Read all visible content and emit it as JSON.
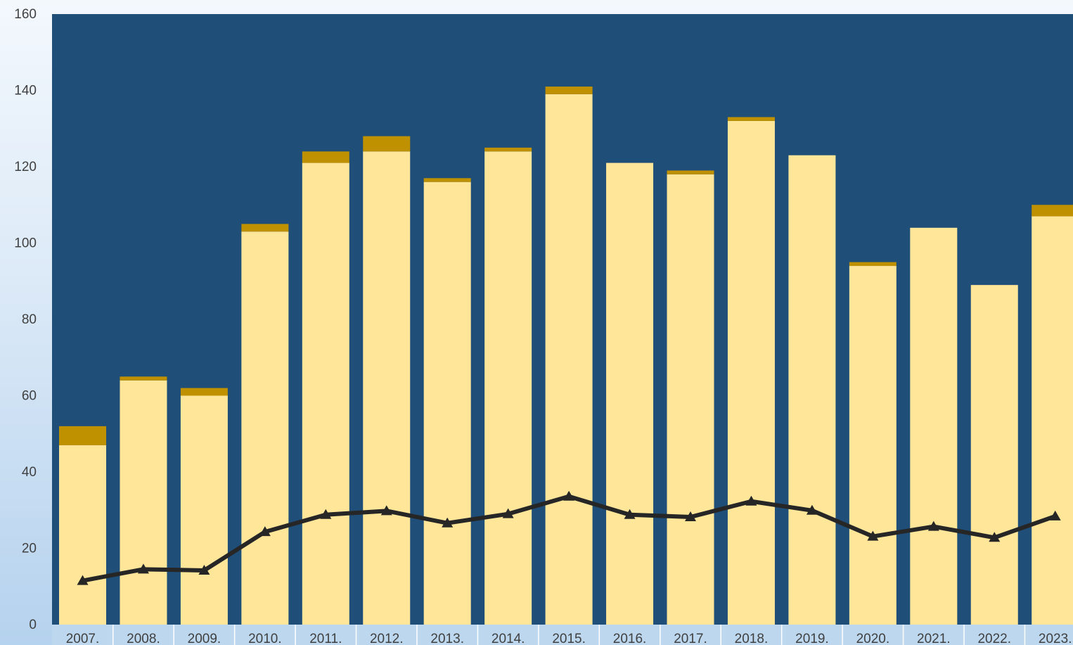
{
  "chart_data": {
    "type": "bar",
    "stacked": true,
    "title": "",
    "xlabel": "",
    "ylabel": "",
    "categories": [
      "2007.",
      "2008.",
      "2009.",
      "2010.",
      "2011.",
      "2012.",
      "2013.",
      "2014.",
      "2015.",
      "2016.",
      "2017.",
      "2018.",
      "2019.",
      "2020.",
      "2021.",
      "2022.",
      "2023."
    ],
    "ylim": [
      0,
      160
    ],
    "yticks": [
      0,
      20,
      40,
      60,
      80,
      100,
      120,
      140,
      160
    ],
    "grid": false,
    "legend": "none",
    "series": [
      {
        "type": "bar",
        "color": "#ffe699",
        "values": [
          47,
          64,
          60,
          103,
          121,
          124,
          116,
          124,
          139,
          121,
          118,
          132,
          123,
          94,
          104,
          89,
          107
        ]
      },
      {
        "type": "bar",
        "color": "#bf9000",
        "values": [
          5,
          1,
          2,
          2,
          3,
          4,
          1,
          1,
          2,
          0,
          1,
          1,
          0,
          1,
          0,
          0,
          3
        ]
      },
      {
        "type": "line",
        "color": "#262626",
        "marker": "triangle",
        "values": [
          11.5,
          14.5,
          14.2,
          24.3,
          28.8,
          29.8,
          26.6,
          29.0,
          33.6,
          28.8,
          28.2,
          32.3,
          29.9,
          23.1,
          25.7,
          22.8,
          28.4
        ]
      }
    ],
    "colors": {
      "plot_background": "#1f4e79",
      "category_band": "#bdd7ee"
    }
  }
}
